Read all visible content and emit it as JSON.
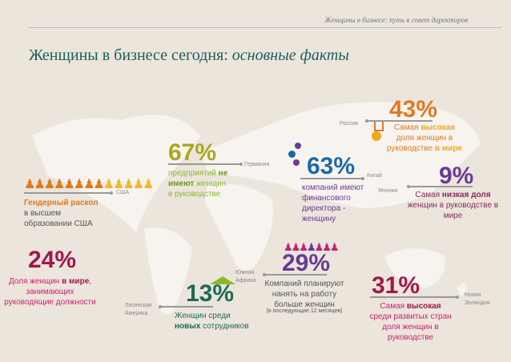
{
  "header": "Женщины в бизнесе: путь в совет директоров",
  "title": {
    "main": "Женщины в бизнесе сегодня: ",
    "italic": "основные факты"
  },
  "facts": {
    "usa": {
      "country": "США",
      "t1": "Гендерный раскол",
      "t2": " в высшем образовании США"
    },
    "world": {
      "pct": "24%",
      "t1": "Доля женщин ",
      "b": "в мире",
      "t2": ", занимающих руководящие должности"
    },
    "germany": {
      "pct": "67%",
      "country": "Германия",
      "t1": "предприятий ",
      "b": "не имеют",
      "t2": " женщин в руководстве"
    },
    "russia": {
      "pct": "43%",
      "country": "Россия",
      "t1": "Самая ",
      "b1": "высокая",
      "t2": " доля женщин в руководстве ",
      "b2": "в мире"
    },
    "china": {
      "pct": "63%",
      "country": "Китай",
      "t": "компаний имеют финансового директора - женщину"
    },
    "japan": {
      "pct": "9%",
      "country": "Япония",
      "t1": "Самая ",
      "b": "низкая доля",
      "t2": " женщин в руководстве в мире"
    },
    "latam": {
      "pct": "13%",
      "country": "Латинская Америка",
      "t1": "Женщин среди ",
      "b": "новых",
      "t2": " сотрудников"
    },
    "safrica": {
      "pct": "29%",
      "country": "Южная Африка",
      "t": "Компаний планируют нанять на работу больше женщин",
      "small": "(в последующие 12 месяцев)"
    },
    "nz": {
      "pct": "31%",
      "country": "Новая Зеландия",
      "t1": "Самая ",
      "b": "высокая",
      "t2": " среди развитых стран доля женщин в руководстве"
    }
  },
  "colors": {
    "bg": "#ebe5dc",
    "teal": "#1f5f57",
    "orange": "#e07a22",
    "olive": "#a8a820",
    "crimson": "#a3164c",
    "magenta": "#d0206f",
    "blue": "#1a6aa8",
    "purple": "#6a3a94",
    "gold": "#f0a820"
  }
}
